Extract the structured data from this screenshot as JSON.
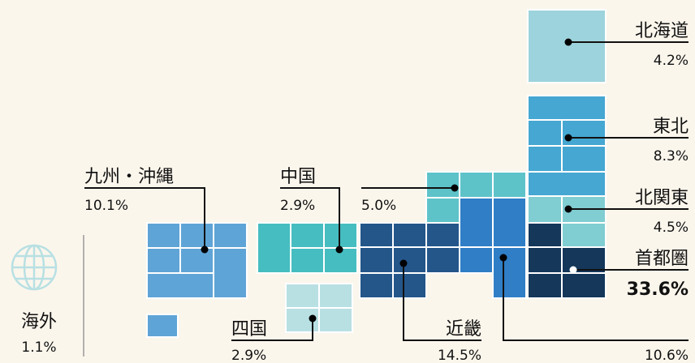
{
  "regions": [
    {
      "name": "北海道",
      "value": "4.2%"
    },
    {
      "name": "東北",
      "value": "8.3%"
    },
    {
      "name": "北関東",
      "value": "4.5%"
    },
    {
      "name": "首都圏",
      "value": "33.6%"
    },
    {
      "name": "九州・沖縄",
      "value": "10.1%"
    },
    {
      "name": "中国",
      "value": "2.9%"
    },
    {
      "value": "5.0%"
    },
    {
      "name": "四国",
      "value": "2.9%"
    },
    {
      "name": "近畿",
      "value": "14.5%"
    },
    {
      "value": "10.6%"
    },
    {
      "name": "海外",
      "value": "1.1%"
    }
  ]
}
